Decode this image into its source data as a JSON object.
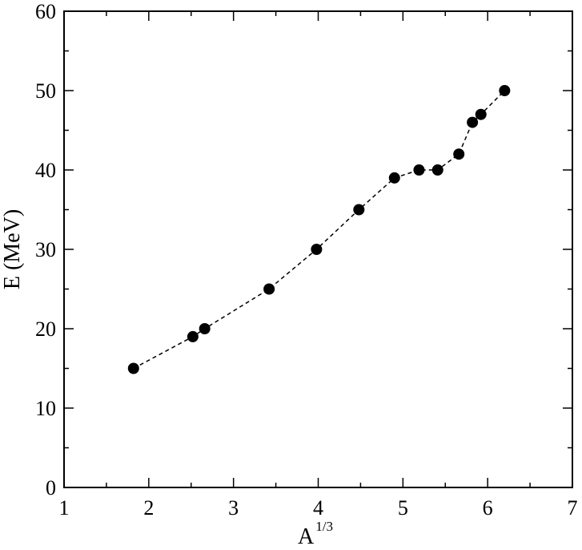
{
  "chart_data": {
    "type": "scatter",
    "title": "",
    "xlabel": "A",
    "xlabel_superscript": "1/3",
    "ylabel": "E (MeV)",
    "xlim": [
      1,
      7
    ],
    "ylim": [
      0,
      60
    ],
    "x_ticks": [
      1,
      2,
      3,
      4,
      5,
      6,
      7
    ],
    "y_ticks": [
      0,
      10,
      20,
      30,
      40,
      50,
      60
    ],
    "x_minor_step": 0.5,
    "y_minor_step": 5,
    "grid": false,
    "line_style": "dashed",
    "marker": "filled-circle",
    "series": [
      {
        "x": [
          1.82,
          2.52,
          2.66,
          3.42,
          3.98,
          4.48,
          4.9,
          5.19,
          5.41,
          5.66,
          5.82,
          5.92,
          6.2
        ],
        "y": [
          15,
          19,
          20,
          25,
          30,
          35,
          39,
          40,
          40,
          42,
          46,
          47,
          50
        ]
      }
    ]
  }
}
